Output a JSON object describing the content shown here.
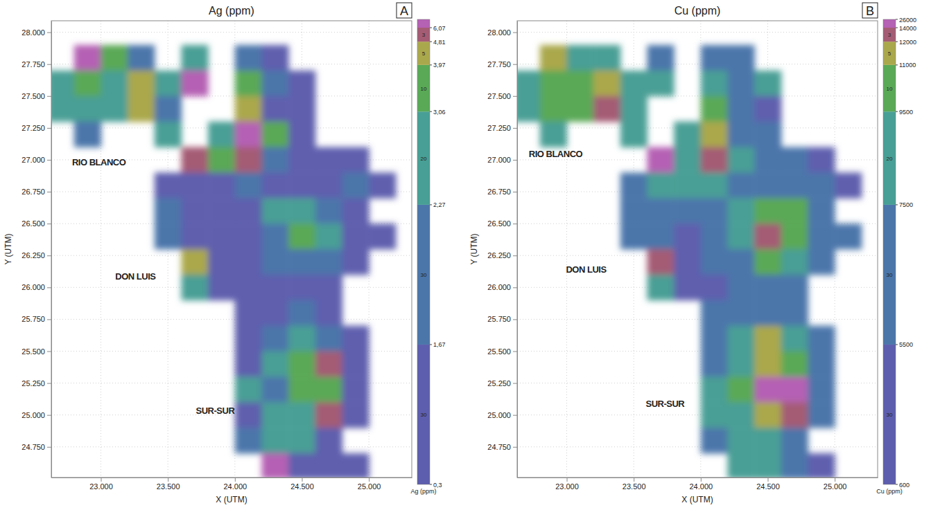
{
  "chart_data": [
    {
      "type": "heatmap",
      "title": "Ag (ppm)",
      "panel": "A",
      "x_label": "X (UTM)",
      "y_label": "Y (UTM)",
      "xlim": [
        22630,
        25320
      ],
      "ylim": [
        24510,
        28090
      ],
      "grid": true,
      "xticks": [
        {
          "value": 23000,
          "label": "23.000"
        },
        {
          "value": 23500,
          "label": "23.500"
        },
        {
          "value": 24000,
          "label": "24.000"
        },
        {
          "value": 24500,
          "label": "24.500"
        },
        {
          "value": 25000,
          "label": "25.000"
        }
      ],
      "yticks": [
        {
          "value": 24750,
          "label": "24.750"
        },
        {
          "value": 25000,
          "label": "25.000"
        },
        {
          "value": 25250,
          "label": "25.250"
        },
        {
          "value": 25500,
          "label": "25.500"
        },
        {
          "value": 25750,
          "label": "25.750"
        },
        {
          "value": 26000,
          "label": "26.000"
        },
        {
          "value": 26250,
          "label": "26.250"
        },
        {
          "value": 26500,
          "label": "26.500"
        },
        {
          "value": 26750,
          "label": "26.750"
        },
        {
          "value": 27000,
          "label": "27.000"
        },
        {
          "value": 27250,
          "label": "27.250"
        },
        {
          "value": 27500,
          "label": "27.500"
        },
        {
          "value": 27750,
          "label": "27.750"
        },
        {
          "value": 28000,
          "label": "28.000"
        }
      ],
      "x": [
        22700,
        22900,
        23100,
        23300,
        23500,
        23700,
        23900,
        24100,
        24300,
        24500,
        24700,
        24900,
        25100
      ],
      "y": [
        27800,
        27600,
        27400,
        27200,
        27000,
        26800,
        26600,
        26400,
        26200,
        26000,
        25800,
        25600,
        25400,
        25200,
        25000,
        24800,
        24600
      ],
      "cells": [
        [
          null,
          6.5,
          3.2,
          2.0,
          null,
          2.5,
          null,
          1.9,
          1.4,
          null,
          null,
          null,
          null
        ],
        [
          2.5,
          3.5,
          2.5,
          4.2,
          3.0,
          6.5,
          null,
          3.5,
          1.8,
          1.2,
          null,
          null,
          null
        ],
        [
          2.3,
          3.0,
          2.5,
          4.0,
          2.0,
          null,
          null,
          4.5,
          1.5,
          1.2,
          null,
          null,
          null
        ],
        [
          null,
          2.0,
          null,
          null,
          2.5,
          null,
          2.5,
          6.5,
          3.5,
          1.4,
          null,
          null,
          null
        ],
        [
          null,
          null,
          null,
          null,
          null,
          4.9,
          3.2,
          5.0,
          2.0,
          1.2,
          1.4,
          1.4,
          null
        ],
        [
          null,
          null,
          null,
          null,
          1.5,
          1.2,
          1.3,
          1.9,
          1.2,
          1.3,
          1.5,
          2.0,
          1.4
        ],
        [
          null,
          null,
          null,
          null,
          2.0,
          1.2,
          1.4,
          1.2,
          2.3,
          2.5,
          2.2,
          1.5,
          null
        ],
        [
          null,
          null,
          null,
          null,
          1.8,
          1.5,
          1.2,
          1.5,
          2.0,
          3.3,
          2.8,
          1.6,
          1.4
        ],
        [
          null,
          null,
          null,
          null,
          null,
          4.0,
          1.3,
          1.2,
          1.8,
          2.2,
          2.0,
          1.3,
          null
        ],
        [
          null,
          null,
          null,
          null,
          null,
          2.5,
          1.2,
          1.1,
          1.3,
          1.5,
          1.3,
          null,
          null
        ],
        [
          null,
          null,
          null,
          null,
          null,
          null,
          null,
          1.3,
          1.2,
          2.0,
          1.5,
          null,
          null
        ],
        [
          null,
          null,
          null,
          null,
          null,
          null,
          null,
          1.4,
          2.0,
          2.3,
          1.8,
          1.2,
          null
        ],
        [
          null,
          null,
          null,
          null,
          null,
          null,
          null,
          1.5,
          2.5,
          3.8,
          5.0,
          1.5,
          null
        ],
        [
          null,
          null,
          null,
          null,
          null,
          null,
          null,
          2.5,
          1.8,
          3.3,
          3.5,
          1.3,
          null
        ],
        [
          null,
          null,
          null,
          null,
          null,
          null,
          null,
          1.5,
          2.3,
          2.8,
          5.5,
          1.5,
          null
        ],
        [
          null,
          null,
          null,
          null,
          null,
          null,
          null,
          2.0,
          2.5,
          2.5,
          1.5,
          null,
          null
        ],
        [
          null,
          null,
          null,
          null,
          null,
          null,
          null,
          null,
          6.5,
          1.6,
          1.4,
          1.5,
          null
        ]
      ],
      "annotations": [
        {
          "text": "RIO BLANCO",
          "x": 22985,
          "y": 26958
        },
        {
          "text": "DON LUIS",
          "x": 23258,
          "y": 26062
        },
        {
          "text": "SUR-SUR",
          "x": 23853,
          "y": 25009
        }
      ],
      "color_bar": {
        "title": "Ag (ppm)",
        "ticks": [
          {
            "value": 0.3,
            "label": "0,3"
          },
          {
            "value": 1.67,
            "label": "1,67"
          },
          {
            "value": 2.27,
            "label": "2,27"
          },
          {
            "value": 3.06,
            "label": "3,06"
          },
          {
            "value": 3.97,
            "label": "3,97"
          },
          {
            "value": 4.81,
            "label": "4,81"
          },
          {
            "value": 6.07,
            "label": "6,07"
          }
        ],
        "colors": [
          "#5e5eae",
          "#4b76aa",
          "#489f95",
          "#5aa957",
          "#aaa84c",
          "#a45c74",
          "#b561b4"
        ],
        "percents": [
          30,
          30,
          20,
          10,
          5,
          3,
          null
        ]
      }
    },
    {
      "type": "heatmap",
      "title": "Cu (ppm)",
      "panel": "B",
      "x_label": "X (UTM)",
      "y_label": "Y (UTM)",
      "xlim": [
        22630,
        25320
      ],
      "ylim": [
        24510,
        28090
      ],
      "grid": true,
      "xticks": [
        {
          "value": 23000,
          "label": "23.000"
        },
        {
          "value": 23500,
          "label": "23.500"
        },
        {
          "value": 24000,
          "label": "24.000"
        },
        {
          "value": 24500,
          "label": "24.500"
        },
        {
          "value": 25000,
          "label": "25.000"
        }
      ],
      "yticks": [
        {
          "value": 24750,
          "label": "24.750"
        },
        {
          "value": 25000,
          "label": "25.000"
        },
        {
          "value": 25250,
          "label": "25.250"
        },
        {
          "value": 25500,
          "label": "25.500"
        },
        {
          "value": 25750,
          "label": "25.750"
        },
        {
          "value": 26000,
          "label": "26.000"
        },
        {
          "value": 26250,
          "label": "26.250"
        },
        {
          "value": 26500,
          "label": "26.500"
        },
        {
          "value": 26750,
          "label": "26.750"
        },
        {
          "value": 27000,
          "label": "27.000"
        },
        {
          "value": 27250,
          "label": "27.250"
        },
        {
          "value": 27500,
          "label": "27.500"
        },
        {
          "value": 27750,
          "label": "27.750"
        },
        {
          "value": 28000,
          "label": "28.000"
        }
      ],
      "x": [
        22700,
        22900,
        23100,
        23300,
        23500,
        23700,
        23900,
        24100,
        24300,
        24500,
        24700,
        24900,
        25100
      ],
      "y": [
        27800,
        27600,
        27400,
        27200,
        27000,
        26800,
        26600,
        26400,
        26200,
        26000,
        25800,
        25600,
        25400,
        25200,
        25000,
        24800,
        24600
      ],
      "cells": [
        [
          null,
          11500,
          9000,
          8000,
          null,
          7000,
          null,
          7000,
          6000,
          null,
          null,
          null,
          null
        ],
        [
          9000,
          10000,
          10500,
          11000,
          9000,
          8500,
          null,
          8000,
          6000,
          9000,
          null,
          null,
          null
        ],
        [
          8000,
          9500,
          10500,
          12500,
          9000,
          null,
          null,
          9500,
          5500,
          5000,
          null,
          null,
          null
        ],
        [
          null,
          7500,
          null,
          null,
          8500,
          null,
          8500,
          11500,
          7000,
          5500,
          null,
          null,
          null
        ],
        [
          null,
          null,
          null,
          null,
          null,
          14500,
          9000,
          13000,
          9000,
          6500,
          5500,
          5000,
          null
        ],
        [
          null,
          null,
          null,
          null,
          7000,
          8000,
          7500,
          8500,
          6500,
          7000,
          6500,
          5500,
          5000
        ],
        [
          null,
          null,
          null,
          null,
          6500,
          7000,
          5500,
          6000,
          7500,
          9500,
          10500,
          7000,
          null
        ],
        [
          null,
          null,
          null,
          null,
          6000,
          6000,
          5000,
          6500,
          8000,
          13000,
          10500,
          7000,
          5500
        ],
        [
          null,
          null,
          null,
          null,
          null,
          12500,
          5000,
          5500,
          7000,
          9500,
          8500,
          6000,
          null
        ],
        [
          null,
          null,
          null,
          null,
          null,
          8000,
          4500,
          5000,
          5500,
          6500,
          6000,
          null,
          null
        ],
        [
          null,
          null,
          null,
          null,
          null,
          null,
          null,
          5500,
          6000,
          7000,
          6500,
          null,
          null
        ],
        [
          null,
          null,
          null,
          null,
          null,
          null,
          null,
          6500,
          8000,
          11500,
          9000,
          5500,
          null
        ],
        [
          null,
          null,
          null,
          null,
          null,
          null,
          null,
          7000,
          9000,
          11000,
          10500,
          6000,
          null
        ],
        [
          null,
          null,
          null,
          null,
          null,
          null,
          null,
          8000,
          10000,
          14500,
          14000,
          6500,
          null
        ],
        [
          null,
          null,
          null,
          null,
          null,
          null,
          null,
          7500,
          9000,
          11500,
          12500,
          6000,
          null
        ],
        [
          null,
          null,
          null,
          null,
          null,
          null,
          null,
          7000,
          8000,
          8500,
          7000,
          null,
          null
        ],
        [
          null,
          null,
          null,
          null,
          null,
          null,
          null,
          null,
          7500,
          8000,
          6500,
          5000,
          null
        ]
      ],
      "annotations": [
        {
          "text": "RIO BLANCO",
          "x": 22917,
          "y": 27023
        },
        {
          "text": "DON LUIS",
          "x": 23145,
          "y": 26116
        },
        {
          "text": "SUR-SUR",
          "x": 23734,
          "y": 25063
        }
      ],
      "color_bar": {
        "title": "Cu (ppm)",
        "ticks": [
          600,
          5500,
          7500,
          9500,
          11000,
          12000,
          14000,
          26000
        ],
        "colors": [
          "#5e5eae",
          "#4b76aa",
          "#489f95",
          "#5aa957",
          "#aaa84c",
          "#a45c74",
          "#b561b4"
        ],
        "percents": [
          30,
          30,
          20,
          10,
          5,
          3,
          null
        ]
      }
    }
  ]
}
